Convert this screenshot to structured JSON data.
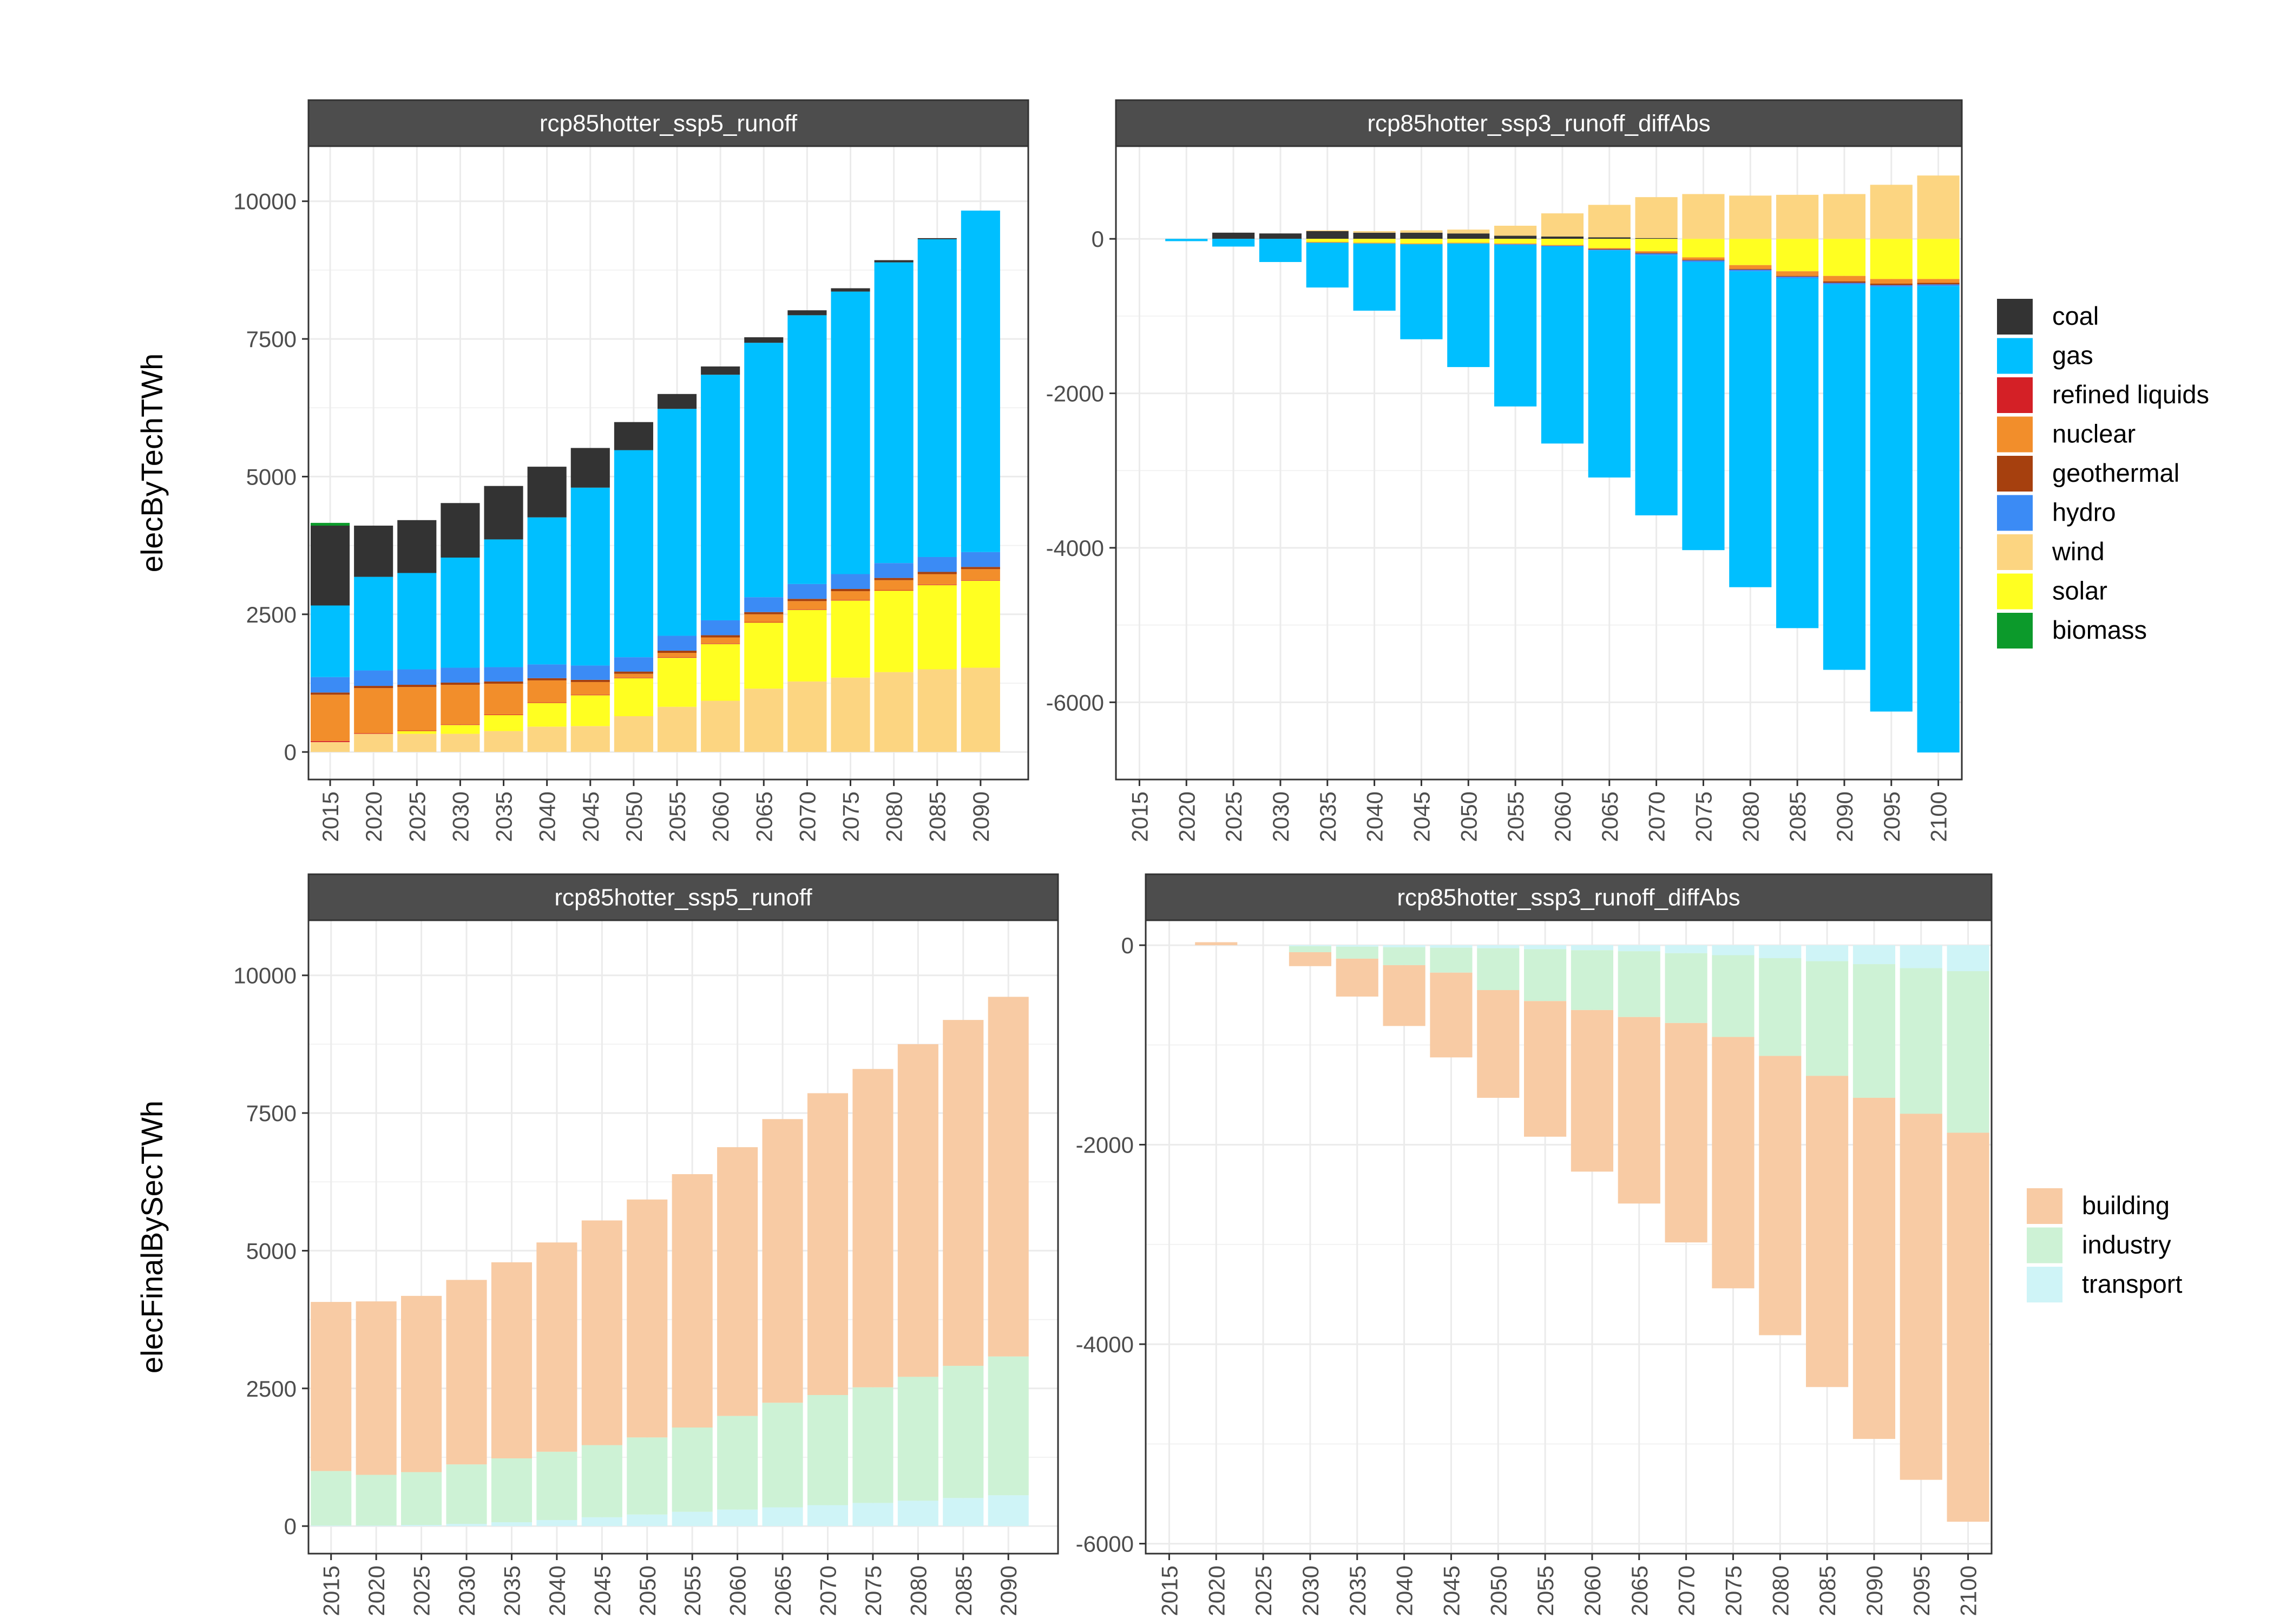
{
  "chart_data": [
    {
      "type": "bar",
      "stacked": true,
      "title": "rcp85hotter_ssp5_runoff",
      "ylabel": "elecByTechTWh",
      "xlabel": "",
      "categories": [
        "2015",
        "2020",
        "2025",
        "2030",
        "2035",
        "2040",
        "2045",
        "2050",
        "2055",
        "2060",
        "2065",
        "2070",
        "2075",
        "2080",
        "2085",
        "2090"
      ],
      "x_visible_last_label": "2090",
      "ylim": [
        -500,
        11000
      ],
      "yticks": [
        0,
        2500,
        5000,
        7500,
        10000
      ],
      "grid": true,
      "series": [
        {
          "name": "wind",
          "color": "#FCD581",
          "values": [
            180,
            330,
            330,
            330,
            380,
            460,
            470,
            650,
            820,
            930,
            1150,
            1280,
            1350,
            1450,
            1500,
            1530
          ]
        },
        {
          "name": "solar",
          "color": "#FFFF21",
          "values": [
            0,
            0,
            50,
            160,
            290,
            430,
            560,
            690,
            890,
            1030,
            1200,
            1300,
            1400,
            1480,
            1530,
            1580
          ]
        },
        {
          "name": "refined liquids",
          "color": "#D42026",
          "values": [
            20,
            10,
            10,
            10,
            10,
            10,
            10,
            10,
            10,
            10,
            10,
            10,
            10,
            10,
            10,
            10
          ]
        },
        {
          "name": "nuclear",
          "color": "#F28E2B",
          "values": [
            840,
            820,
            790,
            720,
            560,
            400,
            230,
            70,
            80,
            110,
            140,
            150,
            160,
            180,
            190,
            200
          ]
        },
        {
          "name": "geothermal",
          "color": "#A6400E",
          "values": [
            40,
            40,
            40,
            40,
            40,
            40,
            40,
            40,
            40,
            40,
            40,
            40,
            40,
            40,
            40,
            40
          ]
        },
        {
          "name": "hydro",
          "color": "#3B8BF5",
          "values": [
            280,
            280,
            280,
            270,
            260,
            250,
            260,
            260,
            270,
            270,
            270,
            270,
            270,
            270,
            270,
            270
          ]
        },
        {
          "name": "gas",
          "color": "#00BFFF",
          "values": [
            1300,
            1700,
            1750,
            2000,
            2320,
            2670,
            3230,
            3760,
            4120,
            4460,
            4620,
            4880,
            5130,
            5460,
            5770,
            6200
          ]
        },
        {
          "name": "coal",
          "color": "#333333",
          "values": [
            1450,
            930,
            960,
            990,
            970,
            920,
            720,
            510,
            270,
            150,
            100,
            90,
            60,
            40,
            20,
            0
          ]
        },
        {
          "name": "biomass",
          "color": "#0C9A2B",
          "values": [
            50,
            0,
            0,
            0,
            0,
            0,
            0,
            0,
            0,
            0,
            0,
            0,
            0,
            0,
            0,
            0
          ]
        }
      ]
    },
    {
      "type": "bar",
      "stacked": true,
      "title": "rcp85hotter_ssp3_runoff_diffAbs",
      "ylabel": "",
      "xlabel": "",
      "categories": [
        "2015",
        "2020",
        "2025",
        "2030",
        "2035",
        "2040",
        "2045",
        "2050",
        "2055",
        "2060",
        "2065",
        "2070",
        "2075",
        "2080",
        "2085",
        "2090",
        "2095",
        "2100"
      ],
      "ylim": [
        -7000,
        1200
      ],
      "yticks": [
        -6000,
        -4000,
        -2000,
        0
      ],
      "grid": true,
      "series": [
        {
          "name": "coal",
          "color": "#333333",
          "values": [
            0,
            0,
            80,
            70,
            100,
            80,
            80,
            70,
            40,
            30,
            20,
            10,
            0,
            0,
            0,
            0,
            0,
            0
          ]
        },
        {
          "name": "wind",
          "color": "#FCD581",
          "values": [
            0,
            0,
            0,
            0,
            10,
            20,
            30,
            50,
            130,
            300,
            420,
            530,
            580,
            560,
            570,
            580,
            700,
            820
          ]
        },
        {
          "name": "solar",
          "color": "#FFFF21",
          "values": [
            0,
            0,
            0,
            0,
            -40,
            -50,
            -60,
            -50,
            -60,
            -80,
            -120,
            -160,
            -240,
            -340,
            -420,
            -480,
            -520,
            -520
          ]
        },
        {
          "name": "nuclear",
          "color": "#F28E2B",
          "values": [
            0,
            0,
            0,
            0,
            -10,
            -10,
            -10,
            -10,
            -10,
            -10,
            -10,
            -20,
            -30,
            -50,
            -60,
            -70,
            -60,
            -50
          ]
        },
        {
          "name": "geothermal",
          "color": "#A6400E",
          "values": [
            0,
            0,
            0,
            0,
            0,
            0,
            0,
            0,
            0,
            0,
            -10,
            -10,
            -10,
            -10,
            -10,
            -20,
            -20,
            -20
          ]
        },
        {
          "name": "hydro",
          "color": "#3B8BF5",
          "values": [
            0,
            0,
            0,
            0,
            0,
            0,
            0,
            0,
            -10,
            -10,
            -10,
            -20,
            -20,
            -20,
            -20,
            -20,
            -20,
            -20
          ]
        },
        {
          "name": "gas",
          "color": "#00BFFF",
          "values": [
            0,
            -30,
            -100,
            -300,
            -580,
            -870,
            -1230,
            -1600,
            -2090,
            -2550,
            -2940,
            -3370,
            -3730,
            -4090,
            -4530,
            -4990,
            -5500,
            -6040
          ]
        }
      ]
    },
    {
      "type": "bar",
      "stacked": true,
      "title": "rcp85hotter_ssp5_runoff",
      "ylabel": "elecFinalBySecTWh",
      "xlabel": "",
      "categories": [
        "2015",
        "2020",
        "2025",
        "2030",
        "2035",
        "2040",
        "2045",
        "2050",
        "2055",
        "2060",
        "2065",
        "2070",
        "2075",
        "2080",
        "2085",
        "2090"
      ],
      "ylim": [
        -500,
        11000
      ],
      "yticks": [
        0,
        2500,
        5000,
        7500,
        10000
      ],
      "grid": true,
      "series": [
        {
          "name": "transport",
          "color": "#CFF4F7",
          "values": [
            10,
            10,
            20,
            40,
            70,
            110,
            160,
            210,
            260,
            300,
            340,
            380,
            420,
            460,
            510,
            560
          ]
        },
        {
          "name": "industry",
          "color": "#CDF2D5",
          "values": [
            990,
            920,
            960,
            1080,
            1160,
            1240,
            1310,
            1400,
            1530,
            1700,
            1900,
            2000,
            2100,
            2250,
            2400,
            2520
          ]
        },
        {
          "name": "building",
          "color": "#F8CBA4",
          "values": [
            3070,
            3150,
            3200,
            3350,
            3560,
            3800,
            4080,
            4320,
            4600,
            4880,
            5150,
            5480,
            5780,
            6040,
            6280,
            6530
          ]
        }
      ]
    },
    {
      "type": "bar",
      "stacked": true,
      "title": "rcp85hotter_ssp3_runoff_diffAbs",
      "ylabel": "",
      "xlabel": "",
      "categories": [
        "2015",
        "2020",
        "2025",
        "2030",
        "2035",
        "2040",
        "2045",
        "2050",
        "2055",
        "2060",
        "2065",
        "2070",
        "2075",
        "2080",
        "2085",
        "2090",
        "2095",
        "2100"
      ],
      "ylim": [
        -6100,
        250
      ],
      "yticks": [
        -6000,
        -4000,
        -2000,
        0
      ],
      "grid": true,
      "series": [
        {
          "name": "transport",
          "color": "#CFF4F7",
          "values": [
            0,
            0,
            0,
            -10,
            -15,
            -20,
            -25,
            -30,
            -40,
            -50,
            -60,
            -80,
            -100,
            -130,
            -160,
            -190,
            -230,
            -260
          ]
        },
        {
          "name": "industry",
          "color": "#CDF2D5",
          "values": [
            0,
            0,
            0,
            -60,
            -120,
            -180,
            -250,
            -420,
            -520,
            -600,
            -660,
            -700,
            -820,
            -980,
            -1150,
            -1340,
            -1460,
            -1620
          ]
        },
        {
          "name": "building",
          "color": "#F8CBA4",
          "values": [
            0,
            30,
            0,
            -140,
            -380,
            -610,
            -850,
            -1080,
            -1360,
            -1620,
            -1870,
            -2200,
            -2520,
            -2800,
            -3120,
            -3420,
            -3670,
            -3900
          ]
        }
      ]
    }
  ],
  "legends": [
    {
      "items": [
        {
          "label": "coal",
          "color": "#333333"
        },
        {
          "label": "gas",
          "color": "#00BFFF"
        },
        {
          "label": "refined liquids",
          "color": "#D42026"
        },
        {
          "label": "nuclear",
          "color": "#F28E2B"
        },
        {
          "label": "geothermal",
          "color": "#A6400E"
        },
        {
          "label": "hydro",
          "color": "#3B8BF5"
        },
        {
          "label": "wind",
          "color": "#FCD581"
        },
        {
          "label": "solar",
          "color": "#FFFF21"
        },
        {
          "label": "biomass",
          "color": "#0C9A2B"
        }
      ]
    },
    {
      "items": [
        {
          "label": "building",
          "color": "#F8CBA4"
        },
        {
          "label": "industry",
          "color": "#CDF2D5"
        },
        {
          "label": "transport",
          "color": "#CFF4F7"
        }
      ]
    }
  ]
}
